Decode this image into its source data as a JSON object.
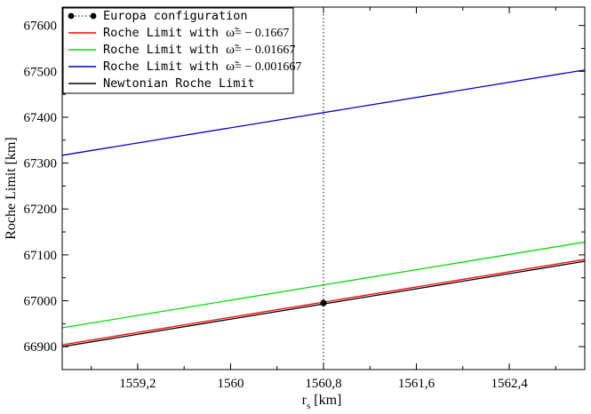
{
  "chart_data": {
    "type": "line",
    "xlabel": {
      "main": "r",
      "sub": "s",
      "unit": "[km]"
    },
    "ylabel": "Roche Limit [km]",
    "xlim": [
      1558.55,
      1563.05
    ],
    "ylim": [
      66850,
      67640
    ],
    "xticks": [
      {
        "value": 1559.2,
        "label": "1559,2"
      },
      {
        "value": 1560.0,
        "label": "1560"
      },
      {
        "value": 1560.8,
        "label": "1560,8"
      },
      {
        "value": 1561.6,
        "label": "1561,6"
      },
      {
        "value": 1562.4,
        "label": "1562,4"
      }
    ],
    "yticks": [
      {
        "value": 66900,
        "label": "66900"
      },
      {
        "value": 67000,
        "label": "67000"
      },
      {
        "value": 67100,
        "label": "67100"
      },
      {
        "value": 67200,
        "label": "67200"
      },
      {
        "value": 67300,
        "label": "67300"
      },
      {
        "value": 67400,
        "label": "67400"
      },
      {
        "value": 67500,
        "label": "67500"
      },
      {
        "value": 67600,
        "label": "67600"
      }
    ],
    "grid": false,
    "legend_position": "top-left",
    "series": [
      {
        "name_prefix": "Roche Limit with ",
        "name_symbol": "ω̃",
        "name_suffix": "= − 0.1667",
        "color": "#ff0000",
        "x": [
          1558.55,
          1563.05
        ],
        "y": [
          66904,
          67090
        ]
      },
      {
        "name_prefix": "Roche Limit with ",
        "name_symbol": "ω̃",
        "name_suffix": "= − 0.01667",
        "color": "#00dd00",
        "x": [
          1558.55,
          1563.05
        ],
        "y": [
          66941,
          67128
        ]
      },
      {
        "name_prefix": "Roche Limit with ",
        "name_symbol": "ω̃",
        "name_suffix": "= − 0.001667",
        "color": "#0000cc",
        "x": [
          1558.55,
          1563.05
        ],
        "y": [
          67317,
          67503
        ]
      },
      {
        "name_prefix": "Newtonian Roche Limit",
        "name_symbol": "",
        "name_suffix": "",
        "color": "#000000",
        "x": [
          1558.55,
          1563.05
        ],
        "y": [
          66900,
          67086
        ]
      }
    ],
    "marker_series": {
      "name": "Europa configuration",
      "color": "#000000",
      "x": 1560.8,
      "y": 66995,
      "line_style": "dotted"
    }
  }
}
